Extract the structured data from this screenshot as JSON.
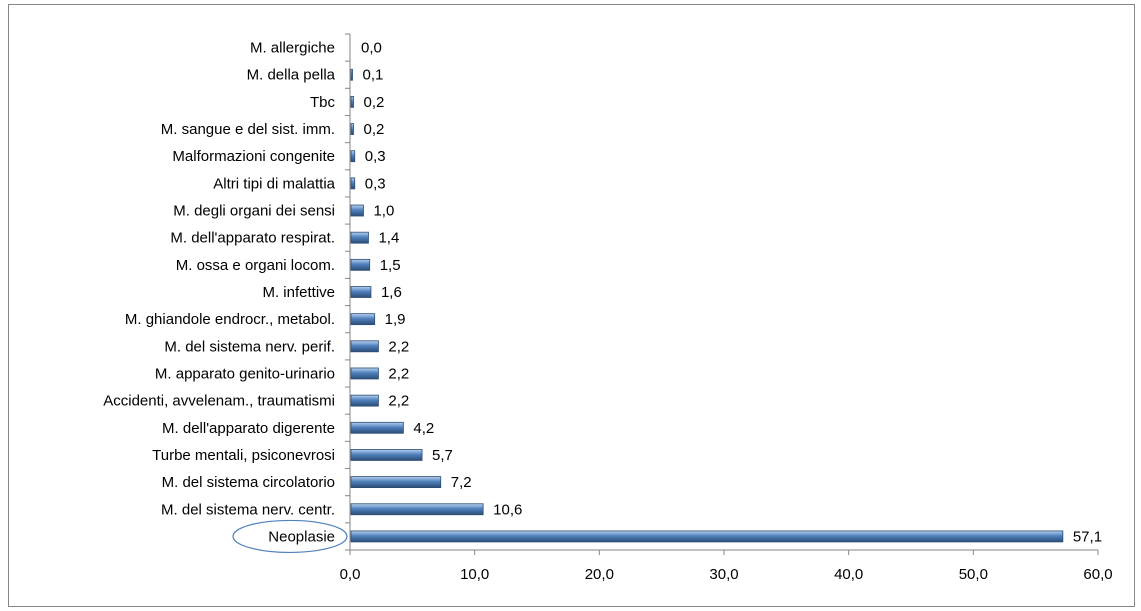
{
  "chart_data": {
    "type": "bar",
    "orientation": "horizontal",
    "title": "",
    "xlabel": "",
    "ylabel": "",
    "xlim": [
      0,
      60
    ],
    "x_ticks": [
      "0,0",
      "10,0",
      "20,0",
      "30,0",
      "40,0",
      "50,0",
      "60,0"
    ],
    "grid": false,
    "legend": "none",
    "bar_color": "#4f81bd",
    "highlight_color": "#4f81bd",
    "categories": [
      "M. allergiche",
      "M. della pella",
      "Tbc",
      "M. sangue e del sist. imm.",
      "Malformazioni congenite",
      "Altri tipi di malattia",
      "M. degli organi dei sensi",
      "M. dell'apparato respirat.",
      "M. ossa e organi locom.",
      "M. infettive",
      "M. ghiandole endrocr., metabol.",
      "M. del sistema nerv. perif.",
      "M. apparato genito-urinario",
      "Accidenti, avvelenam., traumatismi",
      "M. dell'apparato digerente",
      "Turbe mentali, psiconevrosi",
      "M. del sistema circolatorio",
      "M. del sistema nerv. centr.",
      "Neoplasie"
    ],
    "values": [
      0.0,
      0.1,
      0.2,
      0.2,
      0.3,
      0.3,
      1.0,
      1.4,
      1.5,
      1.6,
      1.9,
      2.2,
      2.2,
      2.2,
      4.2,
      5.7,
      7.2,
      10.6,
      57.1
    ],
    "data_labels": [
      "0,0",
      "0,1",
      "0,2",
      "0,2",
      "0,3",
      "0,3",
      "1,0",
      "1,4",
      "1,5",
      "1,6",
      "1,9",
      "2,2",
      "2,2",
      "2,2",
      "4,2",
      "5,7",
      "7,2",
      "10,6",
      "57,1"
    ],
    "highlighted_category": "Neoplasie"
  }
}
